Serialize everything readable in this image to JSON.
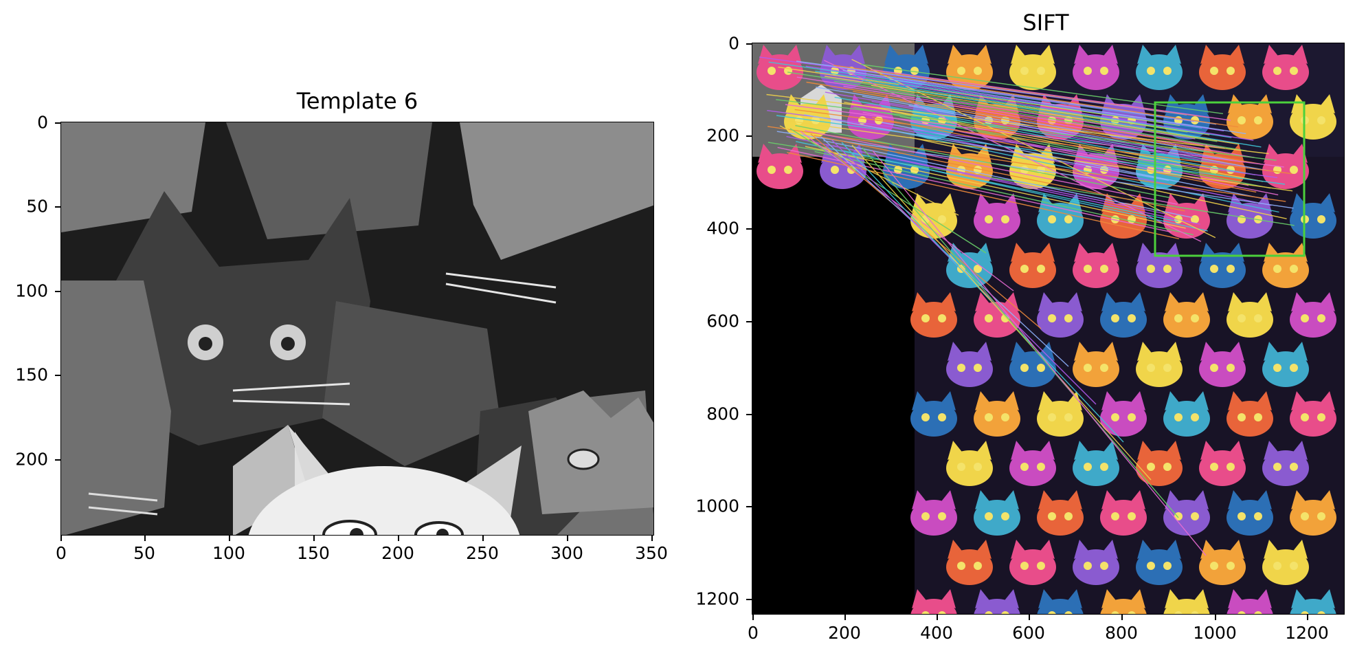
{
  "left_panel": {
    "title": "Template 6",
    "x_ticks": [
      "0",
      "50",
      "100",
      "150",
      "200",
      "250",
      "300",
      "350"
    ],
    "y_ticks": [
      "0",
      "50",
      "100",
      "150",
      "200"
    ],
    "image_description_icon": "grayscale-cat-template-image"
  },
  "right_panel": {
    "title": "SIFT",
    "x_ticks": [
      "0",
      "200",
      "400",
      "600",
      "800",
      "1000",
      "1200"
    ],
    "y_ticks": [
      "0",
      "200",
      "400",
      "600",
      "800",
      "1000",
      "1200"
    ],
    "image_description_icon": "colorful-cat-scene-with-sift-matches",
    "match_box_color": "#4cd13c",
    "palette": [
      "#e84d8a",
      "#f2a23a",
      "#3fa9c9",
      "#8a5bd0",
      "#f0d54a",
      "#e8643a",
      "#2c6fb5",
      "#c94cc0"
    ]
  }
}
